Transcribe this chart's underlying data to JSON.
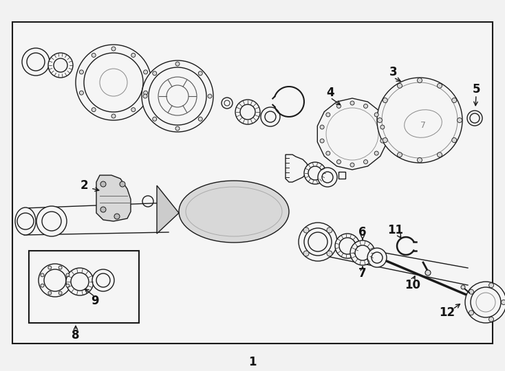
{
  "bg_color": "#f2f2f2",
  "border_color": "#1a1a1a",
  "line_color": "#1a1a1a",
  "white": "#f5f5f5",
  "gray": "#d8d8d8",
  "figsize": [
    7.34,
    5.4
  ],
  "dpi": 100,
  "title": "1"
}
